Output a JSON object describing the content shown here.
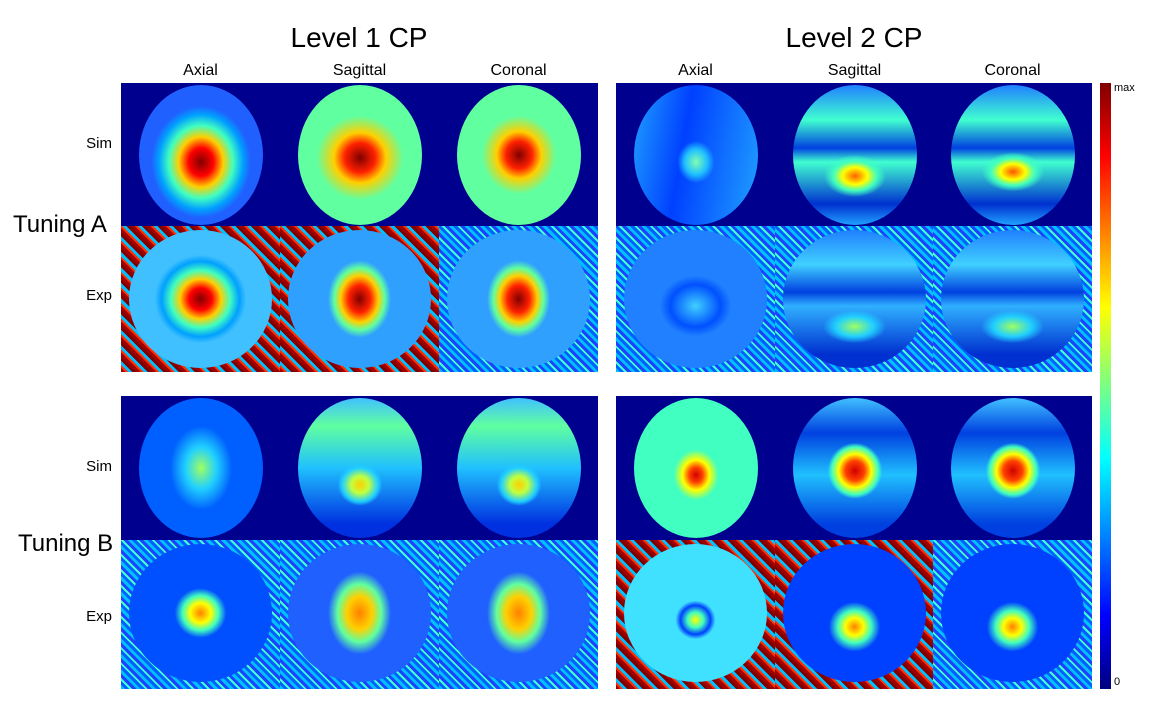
{
  "titles": {
    "level1": "Level 1 CP",
    "level2": "Level 2 CP"
  },
  "columns": {
    "axial": "Axial",
    "sagittal": "Sagittal",
    "coronal": "Coronal"
  },
  "rows": {
    "sim": "Sim",
    "exp": "Exp"
  },
  "tunings": {
    "a": "Tuning A",
    "b": "Tuning B"
  },
  "colorbar": {
    "max_label": "max",
    "min_label": "0",
    "colormap": [
      "#00007f",
      "#0000ff",
      "#00ffff",
      "#ffff00",
      "#ff0000",
      "#7f0000"
    ]
  }
}
